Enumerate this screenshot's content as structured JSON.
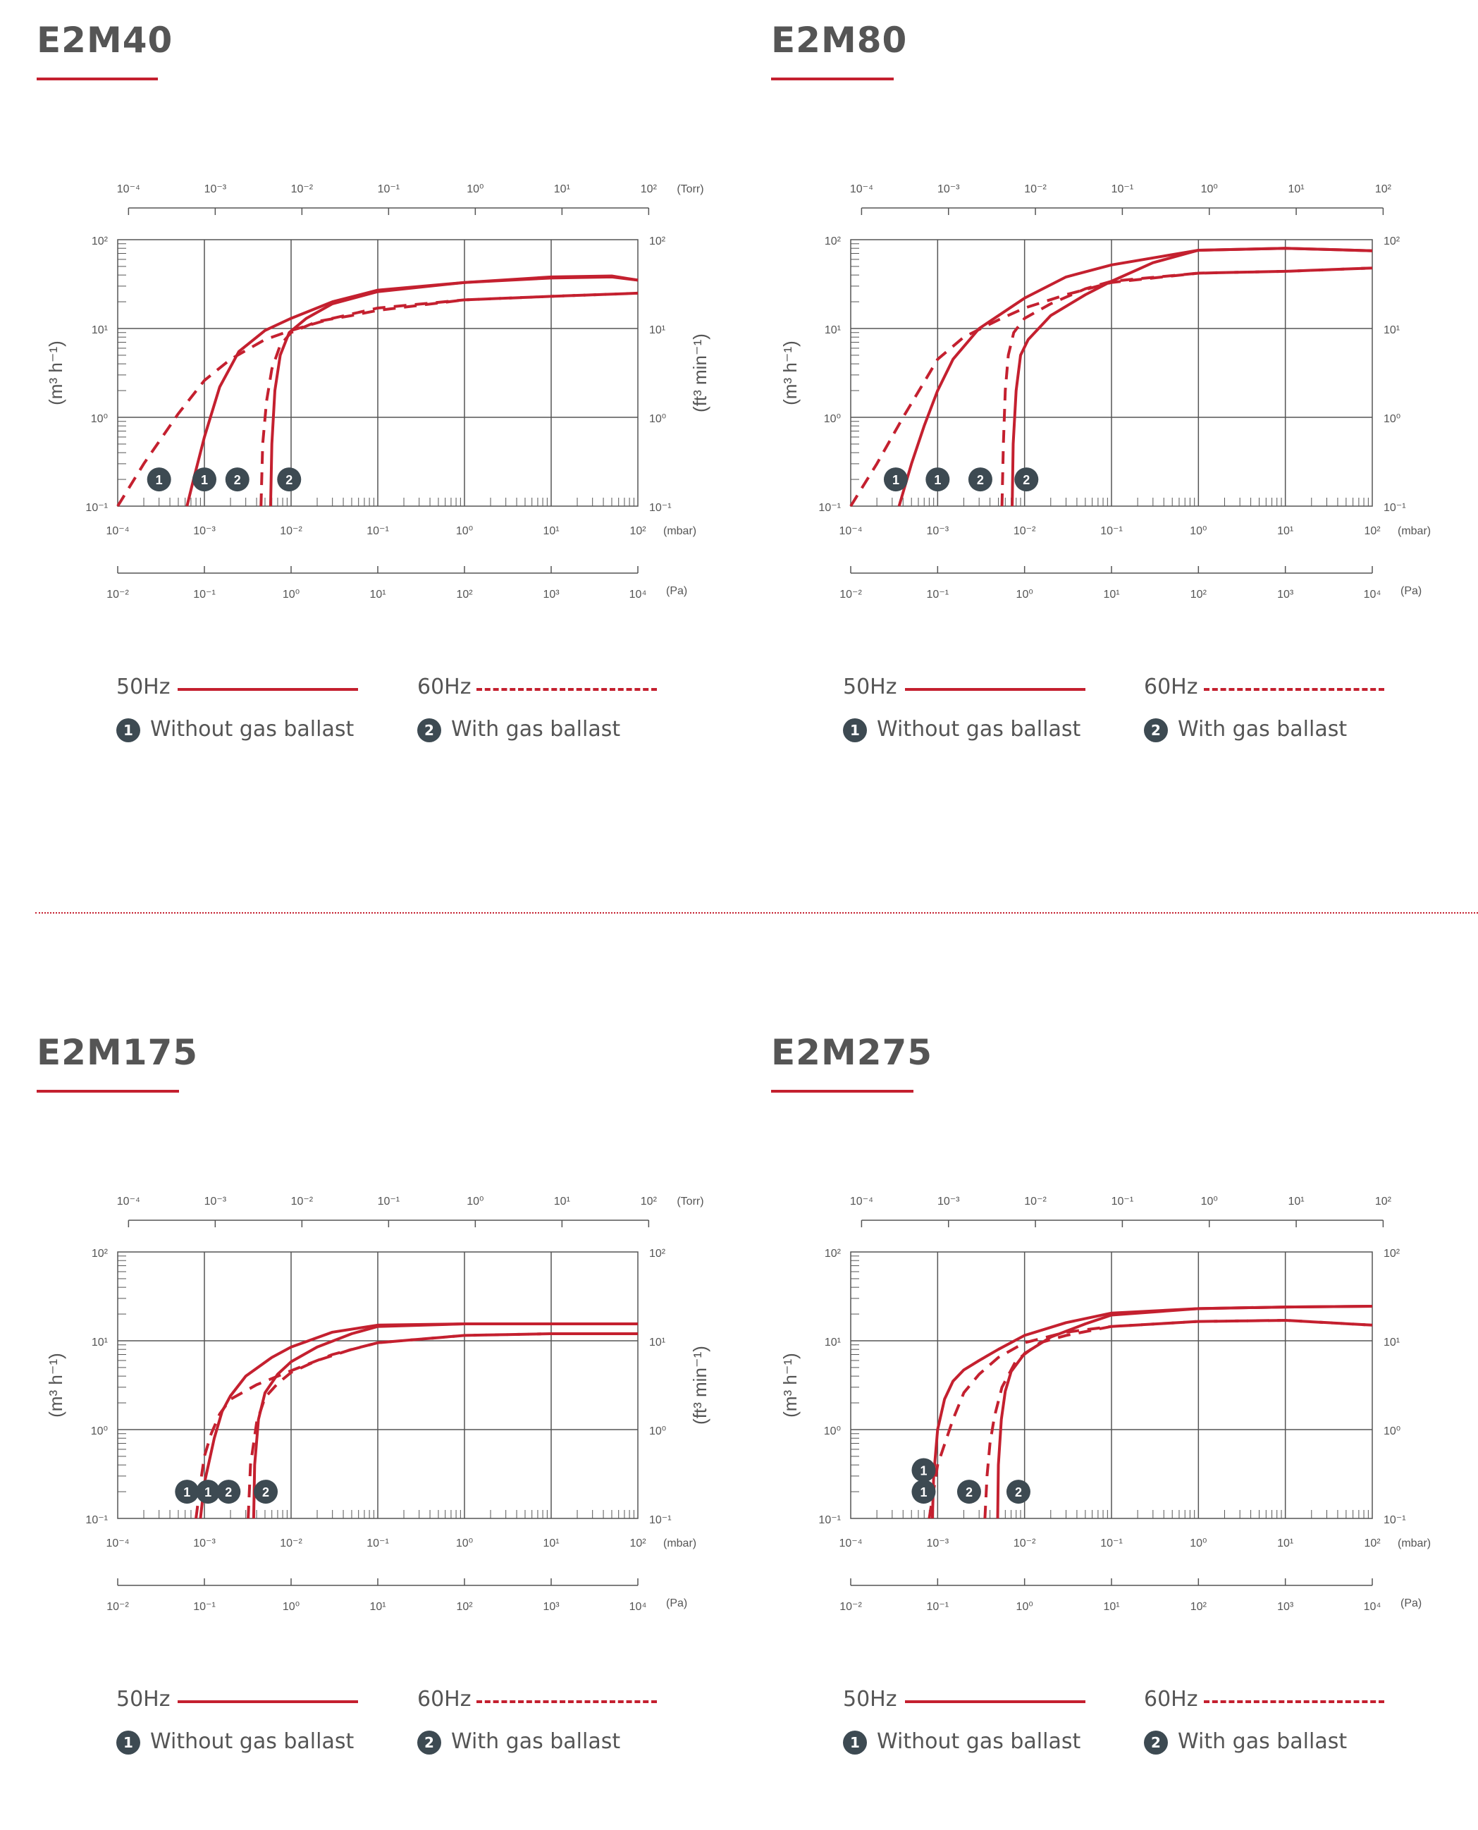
{
  "colors": {
    "curve": "#c4202f",
    "grid": "#555555",
    "text": "#555555",
    "badge": "#3d4a52"
  },
  "legend": {
    "hz50": "50Hz",
    "hz60": "60Hz",
    "badge1": "1",
    "badge2": "2",
    "without": "Without gas ballast",
    "with": "With gas ballast"
  },
  "axes": {
    "torr_unit": "(Torr)",
    "mbar_unit": "(mbar)",
    "pa_unit": "(Pa)",
    "left_label": "(m³ h⁻¹)",
    "right_label": "(ft³ min⁻¹)",
    "torr_ticks": [
      "10⁻⁴",
      "10⁻³",
      "10⁻²",
      "10⁻¹",
      "10⁰",
      "10¹",
      "10²"
    ],
    "mbar_ticks": [
      "10⁻⁴",
      "10⁻³",
      "10⁻²",
      "10⁻¹",
      "10⁰",
      "10¹",
      "10²"
    ],
    "pa_ticks": [
      "10⁻²",
      "10⁻¹",
      "10⁰",
      "10¹",
      "10²",
      "10³",
      "10⁴"
    ],
    "y_ticks": [
      "10⁻¹",
      "10⁰",
      "10¹",
      "10²"
    ]
  },
  "chart_data": [
    {
      "type": "line",
      "title": "E2M40",
      "xscale": "log",
      "yscale": "log",
      "xlabel": "(mbar)",
      "ylabel": "(m³ h⁻¹)",
      "y2label": "(ft³ min⁻¹)",
      "xlim": [
        0.0001,
        100
      ],
      "ylim": [
        0.1,
        100
      ],
      "grid": true,
      "show_torr": true,
      "show_right_label": true,
      "series": [
        {
          "name": "50Hz",
          "style": "solid",
          "x": [
            0.00063,
            0.00075,
            0.001,
            0.0015,
            0.0025,
            0.005,
            0.01,
            0.03,
            0.1,
            1,
            10,
            50,
            100
          ],
          "y": [
            0.1,
            0.2,
            0.6,
            2.2,
            5.5,
            9.5,
            13,
            20,
            27,
            33,
            37,
            38,
            35
          ]
        },
        {
          "name": "50Hz",
          "style": "solid",
          "x": [
            0.0058,
            0.006,
            0.0065,
            0.0075,
            0.0095,
            0.015,
            0.03,
            0.1,
            1,
            10,
            50,
            100
          ],
          "y": [
            0.1,
            0.5,
            2,
            5,
            9,
            13,
            19,
            26,
            33,
            38,
            39,
            35
          ]
        },
        {
          "name": "60Hz",
          "style": "dashed",
          "x": [
            0.0001,
            0.0002,
            0.0005,
            0.001,
            0.002,
            0.005,
            0.01,
            0.03,
            0.1,
            1,
            10,
            100
          ],
          "y": [
            0.1,
            0.3,
            1.1,
            2.6,
            4.5,
            7.5,
            9.5,
            13,
            17,
            21,
            23,
            25
          ]
        },
        {
          "name": "60Hz",
          "style": "dashed",
          "x": [
            0.0045,
            0.0047,
            0.0052,
            0.006,
            0.0075,
            0.01,
            0.02,
            0.05,
            0.1,
            1,
            10,
            100
          ],
          "y": [
            0.1,
            0.5,
            1.5,
            3.5,
            6.5,
            9,
            12,
            14,
            16,
            21,
            23,
            25
          ]
        }
      ],
      "badges": [
        {
          "label": "1",
          "x": 0.0003,
          "y": 0.2
        },
        {
          "label": "1",
          "x": 0.001,
          "y": 0.2
        },
        {
          "label": "2",
          "x": 0.0024,
          "y": 0.2
        },
        {
          "label": "2",
          "x": 0.0095,
          "y": 0.2
        }
      ]
    },
    {
      "type": "line",
      "title": "E2M80",
      "xscale": "log",
      "yscale": "log",
      "xlabel": "(mbar)",
      "ylabel": "(m³ h⁻¹)",
      "y2label": "",
      "xlim": [
        0.0001,
        100
      ],
      "ylim": [
        0.1,
        100
      ],
      "grid": true,
      "show_torr": false,
      "show_right_label": false,
      "series": [
        {
          "name": "50Hz",
          "style": "solid",
          "x": [
            0.00036,
            0.0005,
            0.0007,
            0.001,
            0.0015,
            0.003,
            0.01,
            0.03,
            0.1,
            1,
            10,
            100
          ],
          "y": [
            0.1,
            0.3,
            0.8,
            2,
            4.5,
            10,
            22,
            38,
            52,
            76,
            80,
            75
          ]
        },
        {
          "name": "50Hz",
          "style": "solid",
          "x": [
            0.0072,
            0.0074,
            0.008,
            0.009,
            0.011,
            0.02,
            0.05,
            0.1,
            0.3,
            1,
            10,
            100
          ],
          "y": [
            0.1,
            0.5,
            2,
            5,
            7.5,
            14,
            24,
            34,
            55,
            76,
            80,
            75
          ]
        },
        {
          "name": "60Hz",
          "style": "dashed",
          "x": [
            0.0001,
            0.0002,
            0.0004,
            0.0007,
            0.001,
            0.002,
            0.005,
            0.01,
            0.03,
            0.1,
            1,
            10,
            100
          ],
          "y": [
            0.1,
            0.3,
            1,
            2.5,
            4.5,
            8,
            12.5,
            17,
            24,
            33,
            42,
            44,
            48
          ]
        },
        {
          "name": "60Hz",
          "style": "dashed",
          "x": [
            0.0055,
            0.0057,
            0.006,
            0.0065,
            0.0075,
            0.01,
            0.02,
            0.05,
            0.1,
            1,
            10,
            100
          ],
          "y": [
            0.1,
            0.5,
            2,
            5,
            9,
            13,
            19,
            28,
            34,
            42,
            44,
            48
          ]
        }
      ],
      "badges": [
        {
          "label": "1",
          "x": 0.00033,
          "y": 0.2
        },
        {
          "label": "1",
          "x": 0.001,
          "y": 0.2
        },
        {
          "label": "2",
          "x": 0.0031,
          "y": 0.2
        },
        {
          "label": "2",
          "x": 0.0105,
          "y": 0.2
        }
      ]
    },
    {
      "type": "line",
      "title": "E2M175",
      "xscale": "log",
      "yscale": "log",
      "xlabel": "(mbar)",
      "ylabel": "(m³ h⁻¹)",
      "y2label": "(ft³ min⁻¹)",
      "xlim": [
        0.0001,
        100
      ],
      "ylim": [
        0.1,
        100
      ],
      "grid": true,
      "show_torr": true,
      "show_right_label": true,
      "series": [
        {
          "name": "50Hz",
          "style": "solid",
          "x": [
            0.0009,
            0.001,
            0.0013,
            0.0016,
            0.002,
            0.003,
            0.006,
            0.01,
            0.03,
            0.1,
            1,
            10,
            100
          ],
          "y": [
            0.1,
            0.25,
            0.8,
            1.6,
            2.4,
            4,
            6.5,
            8.5,
            12.5,
            15,
            15.5,
            15.5,
            15.5
          ]
        },
        {
          "name": "50Hz",
          "style": "solid",
          "x": [
            0.0037,
            0.0038,
            0.0042,
            0.005,
            0.007,
            0.01,
            0.02,
            0.05,
            0.1,
            1,
            10,
            100
          ],
          "y": [
            0.1,
            0.4,
            1.3,
            2.6,
            4.2,
            5.8,
            8.5,
            12,
            14.5,
            15.5,
            15.5,
            15.5
          ]
        },
        {
          "name": "60Hz",
          "style": "dashed",
          "x": [
            0.0008,
            0.0009,
            0.001,
            0.0012,
            0.0015,
            0.002,
            0.004,
            0.01,
            0.03,
            0.1,
            1,
            10,
            100
          ],
          "y": [
            0.1,
            0.25,
            0.5,
            0.9,
            1.5,
            2.2,
            3.2,
            4.6,
            7,
            9.5,
            11.5,
            12,
            12
          ]
        },
        {
          "name": "60Hz",
          "style": "dashed",
          "x": [
            0.0032,
            0.0034,
            0.004,
            0.005,
            0.007,
            0.01,
            0.02,
            0.05,
            0.1,
            1,
            10,
            100
          ],
          "y": [
            0.1,
            0.4,
            1.2,
            2.3,
            3.3,
            4.4,
            6,
            8,
            9.5,
            11.5,
            12,
            12
          ]
        }
      ],
      "badges": [
        {
          "label": "1",
          "x": 0.00063,
          "y": 0.2
        },
        {
          "label": "1",
          "x": 0.0011,
          "y": 0.2
        },
        {
          "label": "2",
          "x": 0.0019,
          "y": 0.2
        },
        {
          "label": "2",
          "x": 0.0051,
          "y": 0.2
        }
      ]
    },
    {
      "type": "line",
      "title": "E2M275",
      "xscale": "log",
      "yscale": "log",
      "xlabel": "(mbar)",
      "ylabel": "(m³ h⁻¹)",
      "y2label": "",
      "xlim": [
        0.0001,
        100
      ],
      "ylim": [
        0.1,
        100
      ],
      "grid": true,
      "show_torr": false,
      "show_right_label": false,
      "series": [
        {
          "name": "50Hz",
          "style": "solid",
          "x": [
            0.00087,
            0.0009,
            0.001,
            0.0012,
            0.0015,
            0.002,
            0.003,
            0.005,
            0.01,
            0.03,
            0.1,
            1,
            10,
            100
          ],
          "y": [
            0.1,
            0.3,
            1,
            2.2,
            3.5,
            4.7,
            6,
            8,
            11.5,
            16,
            20.5,
            23,
            24,
            24.5
          ]
        },
        {
          "name": "50Hz",
          "style": "solid",
          "x": [
            0.0049,
            0.005,
            0.0054,
            0.006,
            0.007,
            0.01,
            0.02,
            0.05,
            0.1,
            1,
            10,
            100
          ],
          "y": [
            0.1,
            0.4,
            1.3,
            2.7,
            4.5,
            7.2,
            11,
            15.5,
            19.5,
            23,
            24,
            24.5
          ]
        },
        {
          "name": "60Hz",
          "style": "dashed",
          "x": [
            0.0008,
            0.001,
            0.0015,
            0.002,
            0.003,
            0.005,
            0.01,
            0.03,
            0.1,
            1,
            10,
            100
          ],
          "y": [
            0.1,
            0.4,
            1.3,
            2.6,
            4.2,
            6.5,
            9.5,
            12.5,
            14.5,
            16.5,
            17,
            15
          ]
        },
        {
          "name": "60Hz",
          "style": "dashed",
          "x": [
            0.0035,
            0.0037,
            0.004,
            0.0045,
            0.0055,
            0.008,
            0.015,
            0.03,
            0.1,
            1,
            10,
            100
          ],
          "y": [
            0.1,
            0.3,
            0.7,
            1.4,
            3,
            6,
            9.5,
            11.5,
            14.5,
            16.5,
            17,
            15
          ]
        }
      ],
      "badges": [
        {
          "label": "1",
          "x": 0.00069,
          "y": 0.35
        },
        {
          "label": "1",
          "x": 0.00069,
          "y": 0.2
        },
        {
          "label": "2",
          "x": 0.0023,
          "y": 0.2
        },
        {
          "label": "2",
          "x": 0.0085,
          "y": 0.2
        }
      ]
    }
  ]
}
